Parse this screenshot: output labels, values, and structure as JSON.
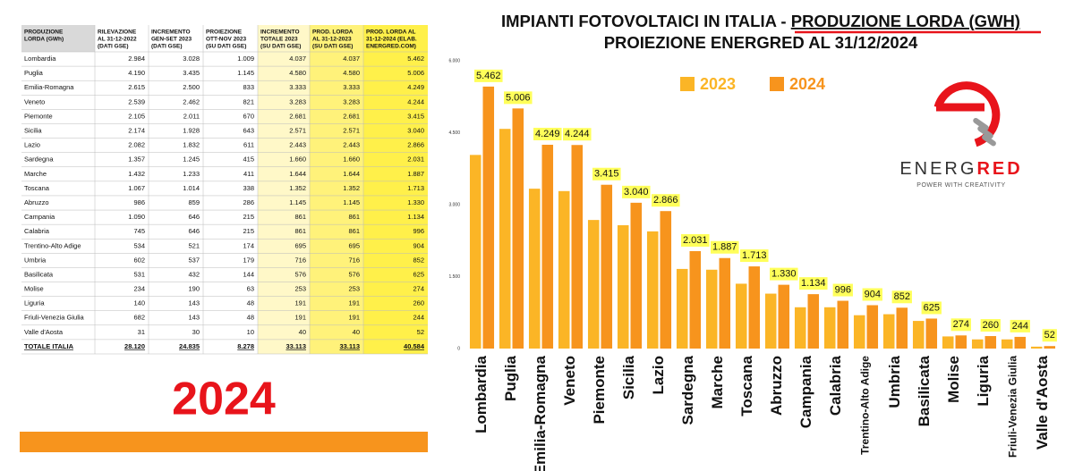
{
  "table": {
    "header": [
      [
        "PRODUZIONE",
        "LORDA (GWh)"
      ],
      [
        "RILEVAZIONE",
        "AL 31-12-2022",
        "(DATI GSE)"
      ],
      [
        "INCREMENTO",
        "GEN-SET 2023",
        "(DATI GSE)"
      ],
      [
        "PROIEZIONE",
        "OTT-NOV 2023",
        "(SU DATI GSE)"
      ],
      [
        "INCREMENTO",
        "TOTALE 2023",
        "(SU DATI GSE)"
      ],
      [
        "PROD. LORDA",
        "AL 31-12-2023",
        "(SU DATI GSE)"
      ],
      [
        "PROD. LORDA AL",
        "31-12-2024 (ELAB.",
        "ENERGRED.COM)"
      ]
    ],
    "rows": [
      [
        "Lombardia",
        "2.984",
        "3.028",
        "1.009",
        "4.037",
        "4.037",
        "5.462"
      ],
      [
        "Puglia",
        "4.190",
        "3.435",
        "1.145",
        "4.580",
        "4.580",
        "5.006"
      ],
      [
        "Emilia-Romagna",
        "2.615",
        "2.500",
        "833",
        "3.333",
        "3.333",
        "4.249"
      ],
      [
        "Veneto",
        "2.539",
        "2.462",
        "821",
        "3.283",
        "3.283",
        "4.244"
      ],
      [
        "Piemonte",
        "2.105",
        "2.011",
        "670",
        "2.681",
        "2.681",
        "3.415"
      ],
      [
        "Sicilia",
        "2.174",
        "1.928",
        "643",
        "2.571",
        "2.571",
        "3.040"
      ],
      [
        "Lazio",
        "2.082",
        "1.832",
        "611",
        "2.443",
        "2.443",
        "2.866"
      ],
      [
        "Sardegna",
        "1.357",
        "1.245",
        "415",
        "1.660",
        "1.660",
        "2.031"
      ],
      [
        "Marche",
        "1.432",
        "1.233",
        "411",
        "1.644",
        "1.644",
        "1.887"
      ],
      [
        "Toscana",
        "1.067",
        "1.014",
        "338",
        "1.352",
        "1.352",
        "1.713"
      ],
      [
        "Abruzzo",
        "986",
        "859",
        "286",
        "1.145",
        "1.145",
        "1.330"
      ],
      [
        "Campania",
        "1.090",
        "646",
        "215",
        "861",
        "861",
        "1.134"
      ],
      [
        "Calabria",
        "745",
        "646",
        "215",
        "861",
        "861",
        "996"
      ],
      [
        "Trentino-Alto Adige",
        "534",
        "521",
        "174",
        "695",
        "695",
        "904"
      ],
      [
        "Umbria",
        "602",
        "537",
        "179",
        "716",
        "716",
        "852"
      ],
      [
        "Basilicata",
        "531",
        "432",
        "144",
        "576",
        "576",
        "625"
      ],
      [
        "Molise",
        "234",
        "190",
        "63",
        "253",
        "253",
        "274"
      ],
      [
        "Liguria",
        "140",
        "143",
        "48",
        "191",
        "191",
        "260"
      ],
      [
        "Friuli-Venezia Giulia",
        "682",
        "143",
        "48",
        "191",
        "191",
        "244"
      ],
      [
        "Valle d'Aosta",
        "31",
        "30",
        "10",
        "40",
        "40",
        "52"
      ]
    ],
    "total": [
      "TOTALE ITALIA",
      "28.120",
      "24.835",
      "8.278",
      "33.113",
      "33.113",
      "40.584"
    ]
  },
  "year_label": "2024",
  "logo": {
    "name_a": "ENERG",
    "name_b": "RED",
    "tagline": "POWER WITH CREATIVITY"
  },
  "chart_data": {
    "type": "bar",
    "title": [
      "IMPIANTI FOTOVOLTAICI IN ITALIA - ",
      "PRODUZIONE LORDA (GWH)"
    ],
    "subtitle": "PROIEZIONE ENERGRED AL 31/12/2024",
    "categories": [
      "Lombardia",
      "Puglia",
      "Emilia-Romagna",
      "Veneto",
      "Piemonte",
      "Sicilia",
      "Lazio",
      "Sardegna",
      "Marche",
      "Toscana",
      "Abruzzo",
      "Campania",
      "Calabria",
      "Trentino-Alto Adige",
      "Umbria",
      "Basilicata",
      "Molise",
      "Liguria",
      "Friuli-Venezia Giulia",
      "Valle d'Aosta"
    ],
    "series": [
      {
        "name": "2023",
        "color": "#fbb526",
        "values": [
          4037,
          4580,
          3333,
          3283,
          2681,
          2571,
          2443,
          1660,
          1644,
          1352,
          1145,
          861,
          861,
          695,
          716,
          576,
          253,
          191,
          191,
          40
        ]
      },
      {
        "name": "2024",
        "color": "#f7941d",
        "values": [
          5462,
          5006,
          4249,
          4244,
          3415,
          3040,
          2866,
          2031,
          1887,
          1713,
          1330,
          1134,
          996,
          904,
          852,
          625,
          274,
          260,
          244,
          52
        ],
        "value_labels": [
          "5.462",
          "5.006",
          "4.249",
          "4.244",
          "3.415",
          "3.040",
          "2.866",
          "2.031",
          "1.887",
          "1.713",
          "1.330",
          "1.134",
          "996",
          "904",
          "852",
          "625",
          "274",
          "260",
          "244",
          "52"
        ]
      }
    ],
    "ylim": [
      0,
      6000
    ],
    "yticks": [
      0,
      {
        "value": 1500,
        "label": "1.500"
      },
      {
        "value": 3000,
        "label": "3.000"
      },
      {
        "value": 4500,
        "label": "4.500"
      },
      {
        "value": 6000,
        "label": "6.000"
      }
    ],
    "grid": false,
    "label_color": "#ffff5a"
  }
}
